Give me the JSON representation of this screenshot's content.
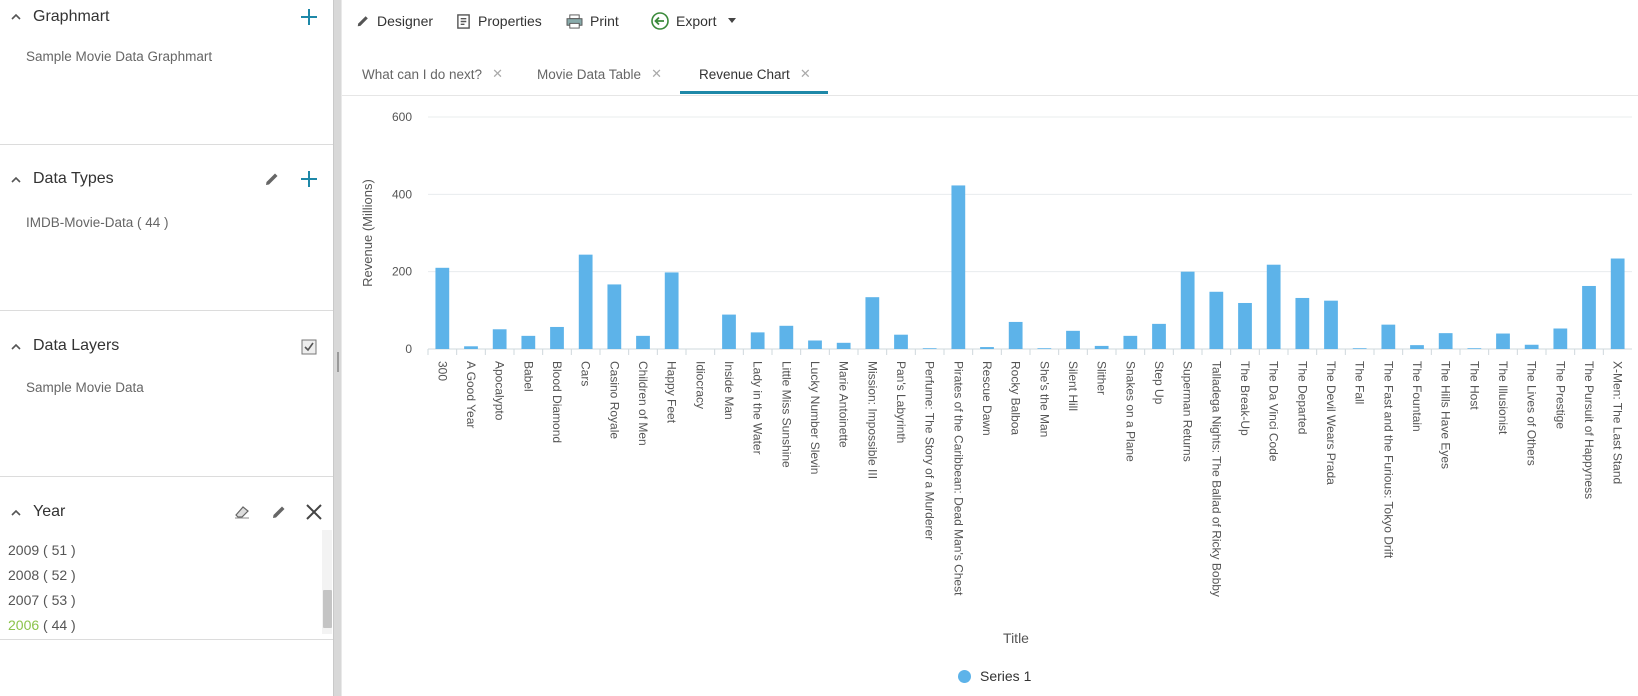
{
  "sidebar": {
    "graphmart": {
      "title": "Graphmart",
      "item": "Sample Movie Data Graphmart"
    },
    "data_types": {
      "title": "Data Types",
      "item": "IMDB-Movie-Data",
      "count": "( 44 )"
    },
    "data_layers": {
      "title": "Data Layers",
      "item": "Sample Movie Data"
    },
    "year": {
      "title": "Year",
      "rows": [
        {
          "year": "2009",
          "count": "( 51 )",
          "active": false
        },
        {
          "year": "2008",
          "count": "( 52 )",
          "active": false
        },
        {
          "year": "2007",
          "count": "( 53 )",
          "active": false
        },
        {
          "year": "2006",
          "count": "( 44 )",
          "active": true
        }
      ]
    }
  },
  "toolbar": {
    "designer": "Designer",
    "properties": "Properties",
    "print": "Print",
    "export": "Export"
  },
  "tabs": [
    {
      "label": "What can I do next?",
      "active": false
    },
    {
      "label": "Movie Data Table",
      "active": false
    },
    {
      "label": "Revenue Chart",
      "active": true
    }
  ],
  "colors": {
    "bar": "#5db3e9",
    "accent": "#1e88a8",
    "plus": "#1e88a8",
    "active_year": "#8bc34a"
  },
  "chart_data": {
    "type": "bar",
    "title": "",
    "xlabel": "Title",
    "ylabel": "Revenue (Millions)",
    "ylim": [
      0,
      600
    ],
    "yticks": [
      0,
      200,
      400,
      600
    ],
    "grid": true,
    "legend_position": "bottom-center",
    "categories": [
      "300",
      "A Good Year",
      "Apocalypto",
      "Babel",
      "Blood Diamond",
      "Cars",
      "Casino Royale",
      "Children of Men",
      "Happy Feet",
      "Idiocracy",
      "Inside Man",
      "Lady in the Water",
      "Little Miss Sunshine",
      "Lucky Number Slevin",
      "Marie Antoinette",
      "Mission: Impossible III",
      "Pan's Labyrinth",
      "Perfume: The Story of a Murderer",
      "Pirates of the Caribbean: Dead Man's Chest",
      "Rescue Dawn",
      "Rocky Balboa",
      "She's the Man",
      "Silent Hill",
      "Slither",
      "Snakes on a Plane",
      "Step Up",
      "Superman Returns",
      "Talladega Nights: The Ballad of Ricky Bobby",
      "The Break-Up",
      "The Da Vinci Code",
      "The Departed",
      "The Devil Wears Prada",
      "The Fall",
      "The Fast and the Furious: Tokyo Drift",
      "The Fountain",
      "The Hills Have Eyes",
      "The Host",
      "The Illusionist",
      "The Lives of Others",
      "The Prestige",
      "The Pursuit of Happyness",
      "X-Men: The Last Stand"
    ],
    "series": [
      {
        "name": "Series 1",
        "values": [
          210,
          7,
          51,
          34,
          57,
          244,
          167,
          34,
          198,
          0,
          89,
          43,
          60,
          22,
          16,
          134,
          37,
          2,
          423,
          5,
          70,
          2,
          47,
          8,
          34,
          65,
          200,
          148,
          119,
          218,
          132,
          125,
          2,
          63,
          10,
          41,
          2,
          40,
          11,
          53,
          163,
          234
        ]
      }
    ]
  }
}
